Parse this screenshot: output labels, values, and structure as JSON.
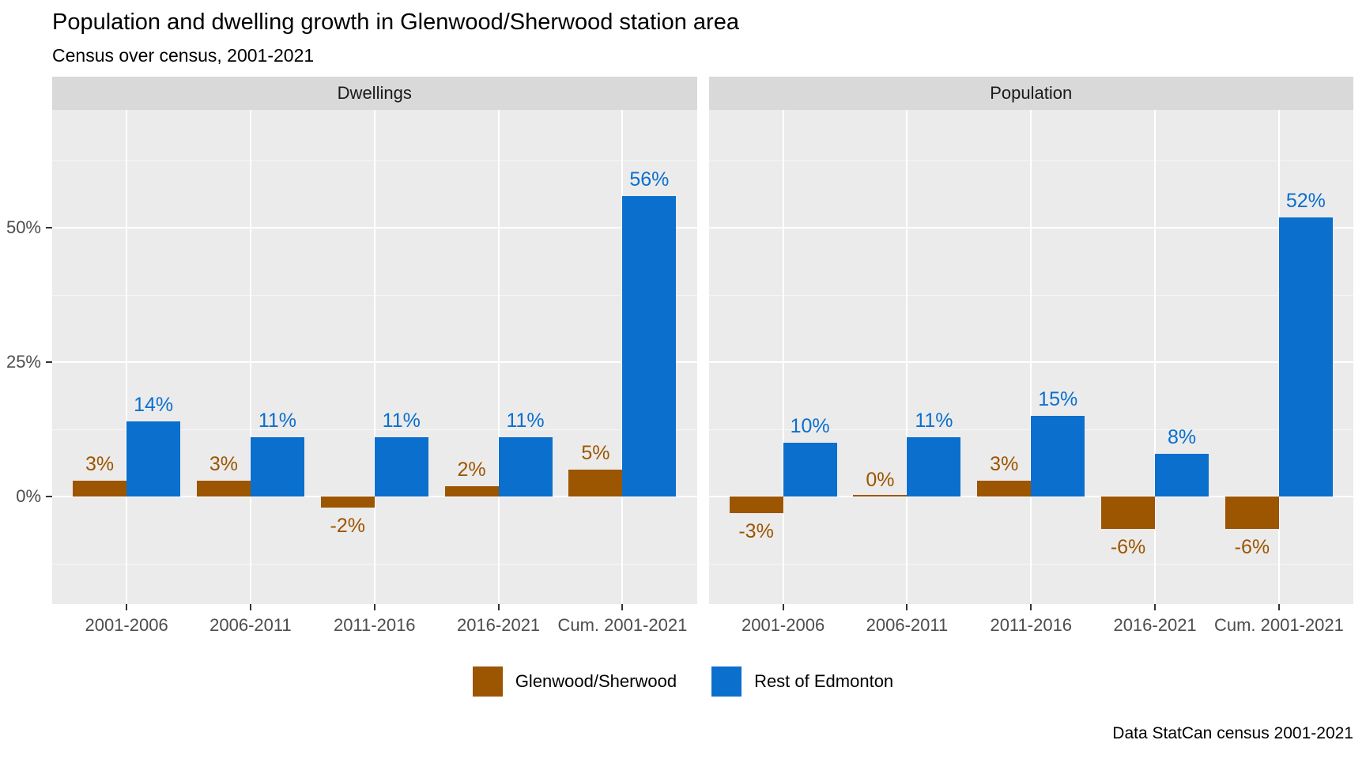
{
  "title": "Population and dwelling growth in Glenwood/Sherwood station area",
  "subtitle": "Census over census, 2001-2021",
  "caption": "Data StatCan census 2001-2021",
  "colors": {
    "glenwood_sherwood": "#9C5500",
    "rest_of_edmonton": "#0B6FCE",
    "panel_background": "#EBEBEB",
    "strip_background": "#D9D9D9",
    "gridline": "#FFFFFF",
    "axis_text": "#4D4D4D",
    "tick_mark": "#333333"
  },
  "legend": {
    "items": [
      {
        "label": "Glenwood/Sherwood",
        "color": "#9C5500"
      },
      {
        "label": "Rest of Edmonton",
        "color": "#0B6FCE"
      }
    ]
  },
  "chart_data": {
    "type": "bar",
    "layout": "two-facet dodged bar chart, shared y axis, legend bottom center",
    "categories": [
      "2001-2006",
      "2006-2011",
      "2011-2016",
      "2016-2021",
      "Cum. 2001-2021"
    ],
    "ylim": [
      -20,
      72
    ],
    "grid": true,
    "y_axis": {
      "ticks": [
        {
          "value": 0,
          "label": "0%"
        },
        {
          "value": 25,
          "label": "25%"
        },
        {
          "value": 50,
          "label": "50%"
        }
      ],
      "minor": [
        -12.5,
        12.5,
        37.5,
        62.5
      ]
    },
    "facets": [
      {
        "label": "Dwellings",
        "series": [
          {
            "name": "Glenwood/Sherwood",
            "color": "#9C5500",
            "values": [
              3,
              3,
              -2,
              2,
              5
            ],
            "labels": [
              "3%",
              "3%",
              "-2%",
              "2%",
              "5%"
            ]
          },
          {
            "name": "Rest of Edmonton",
            "color": "#0B6FCE",
            "values": [
              14,
              11,
              11,
              11,
              56
            ],
            "labels": [
              "14%",
              "11%",
              "11%",
              "11%",
              "56%"
            ]
          }
        ]
      },
      {
        "label": "Population",
        "series": [
          {
            "name": "Glenwood/Sherwood",
            "color": "#9C5500",
            "values": [
              -3,
              0,
              3,
              -6,
              -6
            ],
            "labels": [
              "-3%",
              "0%",
              "3%",
              "-6%",
              "-6%"
            ]
          },
          {
            "name": "Rest of Edmonton",
            "color": "#0B6FCE",
            "values": [
              10,
              11,
              15,
              8,
              52
            ],
            "labels": [
              "10%",
              "11%",
              "15%",
              "8%",
              "52%"
            ]
          }
        ]
      }
    ]
  }
}
